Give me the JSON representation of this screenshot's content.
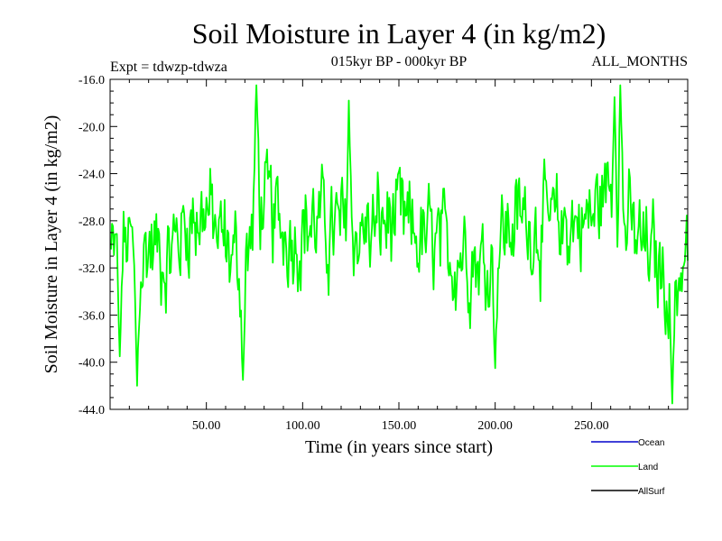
{
  "chart_data": {
    "type": "line",
    "title": "Soil Moisture in Layer 4 (in kg/m2)",
    "subtitle_left": "Expt = tdwzp-tdwza",
    "subtitle_center": "015kyr BP - 000kyr BP",
    "subtitle_right": "ALL_MONTHS",
    "xlabel": "Time (in years since start)",
    "ylabel": "Soil Moisture in Layer 4 (in kg/m2)",
    "xlim": [
      0,
      300
    ],
    "ylim": [
      -44,
      -16
    ],
    "x_ticks": [
      50,
      100,
      150,
      200,
      250
    ],
    "x_tick_labels": [
      "50.00",
      "100.00",
      "150.00",
      "200.00",
      "250.00"
    ],
    "y_ticks": [
      -44,
      -40,
      -36,
      -32,
      -28,
      -24,
      -20,
      -16
    ],
    "y_tick_labels": [
      "-44.0",
      "-40.0",
      "-36.0",
      "-32.0",
      "-28.0",
      "-24.0",
      "-20.0",
      "-16.0"
    ],
    "legend": [
      {
        "name": "Ocean",
        "color": "#0000cc"
      },
      {
        "name": "Land",
        "color": "#00ff00"
      },
      {
        "name": "AllSurf",
        "color": "#000000"
      }
    ],
    "series": [
      {
        "name": "Land",
        "color": "#00ff00",
        "x_start": 0.5,
        "x_step": 0.5,
        "description": "monthly-sampled noisy series, mean about -29, min about -43.5 near year 292, max about -16.5 near year 76",
        "anchors_x": [
          0,
          10,
          14,
          20,
          30,
          40,
          50,
          55,
          60,
          68,
          72,
          76,
          85,
          95,
          105,
          115,
          125,
          135,
          145,
          155,
          165,
          175,
          185,
          195,
          200,
          210,
          220,
          230,
          240,
          250,
          255,
          260,
          265,
          270,
          275,
          280,
          285,
          290,
          292,
          296,
          300
        ],
        "anchors_y": [
          -31,
          -30,
          -33,
          -30,
          -31,
          -28,
          -27,
          -29,
          -30,
          -32,
          -31,
          -26,
          -28,
          -29,
          -28,
          -29,
          -29,
          -29,
          -28,
          -29,
          -30,
          -31,
          -30,
          -32,
          -30,
          -28,
          -28,
          -29,
          -28,
          -28,
          -26,
          -25,
          -27,
          -29,
          -30,
          -31,
          -32,
          -33,
          -34,
          -32,
          -31
        ],
        "extremes": [
          [
            5,
            -39.5
          ],
          [
            14,
            -42
          ],
          [
            69,
            -41.5
          ],
          [
            76,
            -16.5
          ],
          [
            124,
            -17.8
          ],
          [
            200,
            -40.5
          ],
          [
            262,
            -17.5
          ],
          [
            265,
            -16.5
          ],
          [
            292,
            -43.5
          ]
        ]
      }
    ]
  }
}
